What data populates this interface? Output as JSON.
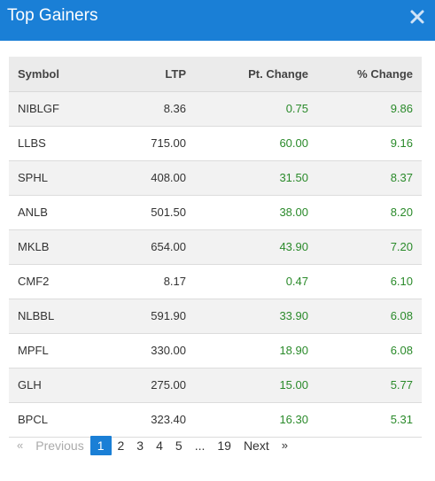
{
  "header": {
    "title": "Top Gainers",
    "close_icon": "close-icon"
  },
  "table": {
    "columns": [
      "Symbol",
      "LTP",
      "Pt. Change",
      "% Change"
    ],
    "rows": [
      [
        "NIBLGF",
        "8.36",
        "0.75",
        "9.86"
      ],
      [
        "LLBS",
        "715.00",
        "60.00",
        "9.16"
      ],
      [
        "SPHL",
        "408.00",
        "31.50",
        "8.37"
      ],
      [
        "ANLB",
        "501.50",
        "38.00",
        "8.20"
      ],
      [
        "MKLB",
        "654.00",
        "43.90",
        "7.20"
      ],
      [
        "CMF2",
        "8.17",
        "0.47",
        "6.10"
      ],
      [
        "NLBBL",
        "591.90",
        "33.90",
        "6.08"
      ],
      [
        "MPFL",
        "330.00",
        "18.90",
        "6.08"
      ],
      [
        "GLH",
        "275.00",
        "15.00",
        "5.77"
      ],
      [
        "BPCL",
        "323.40",
        "16.30",
        "5.31"
      ]
    ]
  },
  "pagination": {
    "prev_chevron": "«",
    "prev_label": "Previous",
    "pages": [
      "1",
      "2",
      "3",
      "4",
      "5",
      "...",
      "19"
    ],
    "active_page": "1",
    "next_label": "Next",
    "next_chevron": "»"
  },
  "colors": {
    "header_bg": "#1a7fd6",
    "positive": "#2a8a2a",
    "active_page_bg": "#1a7fd6"
  }
}
